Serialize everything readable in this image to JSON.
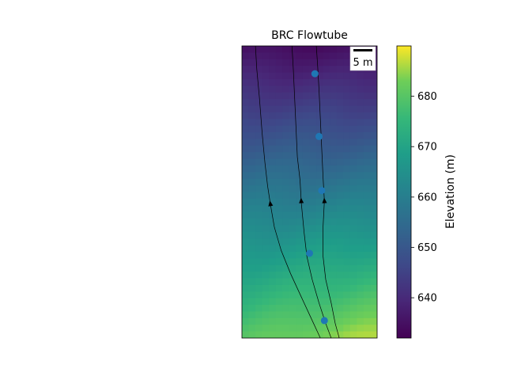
{
  "chart_data": {
    "type": "heatmap",
    "title": "BRC Flowtube",
    "colormap": "viridis",
    "colorbar": {
      "label": "Elevation (m)",
      "range": [
        632,
        690
      ],
      "ticks": [
        640,
        650,
        660,
        670,
        680
      ]
    },
    "scale_bar": {
      "label": "5 m",
      "position": "top-right"
    },
    "axes_ticks_visible": false,
    "points": {
      "color": "#1f77b4",
      "values": [
        {
          "x": 0.54,
          "y": 0.905
        },
        {
          "x": 0.57,
          "y": 0.69
        },
        {
          "x": 0.59,
          "y": 0.505
        },
        {
          "x": 0.5,
          "y": 0.29
        },
        {
          "x": 0.61,
          "y": 0.06
        }
      ]
    },
    "flowlines": [
      {
        "name": "",
        "points": [
          [
            0.1,
            1.0
          ],
          [
            0.11,
            0.92
          ],
          [
            0.13,
            0.82
          ],
          [
            0.15,
            0.7
          ],
          [
            0.17,
            0.6
          ],
          [
            0.19,
            0.52
          ],
          [
            0.21,
            0.46
          ],
          [
            0.24,
            0.38
          ],
          [
            0.29,
            0.3
          ],
          [
            0.36,
            0.22
          ],
          [
            0.44,
            0.14
          ],
          [
            0.51,
            0.07
          ],
          [
            0.58,
            0.0
          ]
        ],
        "arrow_at": 0.46
      },
      {
        "name": "",
        "points": [
          [
            0.37,
            1.0
          ],
          [
            0.38,
            0.92
          ],
          [
            0.39,
            0.82
          ],
          [
            0.4,
            0.72
          ],
          [
            0.41,
            0.62
          ],
          [
            0.43,
            0.54
          ],
          [
            0.44,
            0.46
          ],
          [
            0.46,
            0.36
          ],
          [
            0.48,
            0.28
          ],
          [
            0.52,
            0.2
          ],
          [
            0.57,
            0.12
          ],
          [
            0.62,
            0.05
          ],
          [
            0.66,
            0.0
          ]
        ],
        "arrow_at": 0.47
      },
      {
        "name": "",
        "points": [
          [
            0.55,
            1.0
          ],
          [
            0.56,
            0.93
          ],
          [
            0.57,
            0.85
          ],
          [
            0.58,
            0.75
          ],
          [
            0.59,
            0.65
          ],
          [
            0.6,
            0.55
          ],
          [
            0.61,
            0.47
          ],
          [
            0.6,
            0.38
          ],
          [
            0.6,
            0.28
          ],
          [
            0.62,
            0.2
          ],
          [
            0.66,
            0.12
          ],
          [
            0.69,
            0.05
          ],
          [
            0.72,
            0.0
          ]
        ],
        "arrow_at": 0.47
      }
    ]
  }
}
